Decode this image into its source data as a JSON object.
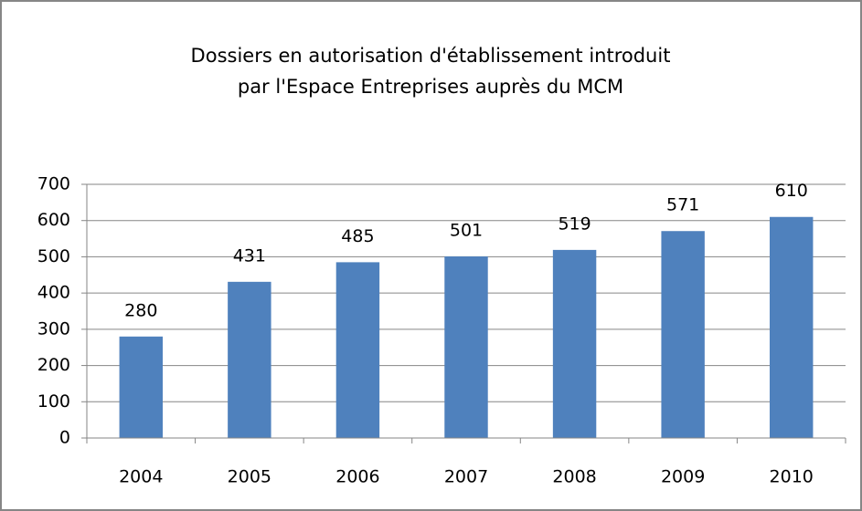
{
  "chart_data": {
    "type": "bar",
    "title": [
      "Dossiers en autorisation d'établissement introduit",
      "par l'Espace Entreprises auprès du MCM"
    ],
    "categories": [
      "2004",
      "2005",
      "2006",
      "2007",
      "2008",
      "2009",
      "2010"
    ],
    "values": [
      280,
      431,
      485,
      501,
      519,
      571,
      610
    ],
    "color": "#4f81bd",
    "ylim": [
      0,
      700
    ],
    "yticks": [
      0,
      100,
      200,
      300,
      400,
      500,
      600,
      700
    ],
    "grid": true
  }
}
